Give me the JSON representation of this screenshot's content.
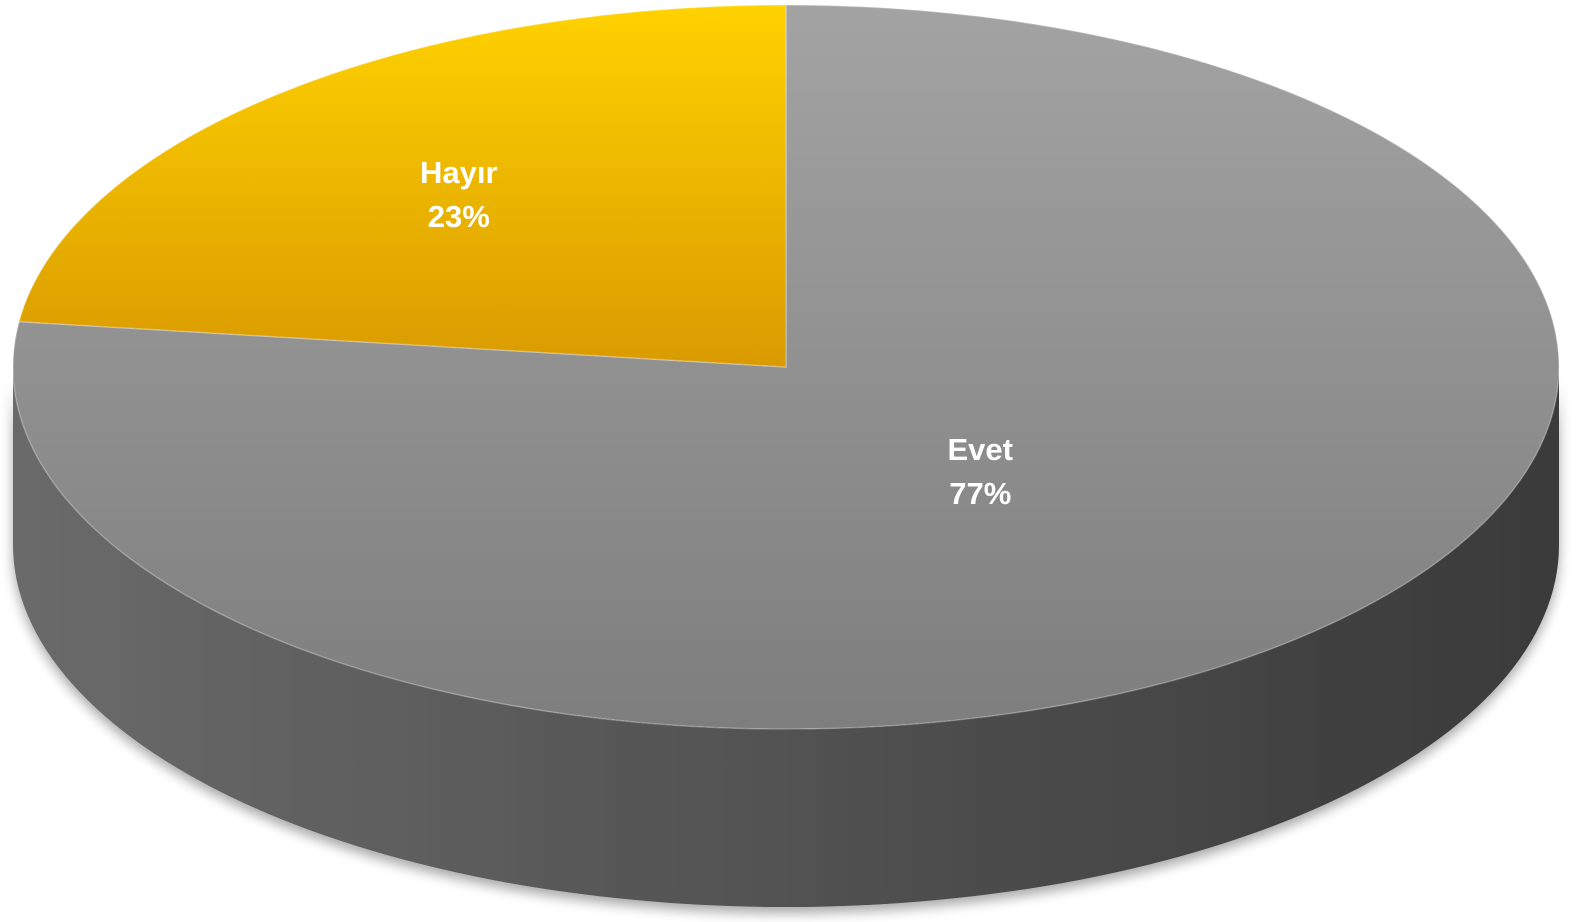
{
  "chart_data": {
    "type": "pie",
    "style": "3d",
    "slices": [
      {
        "label": "Evet",
        "value": 77,
        "percent_label": "77%",
        "color": "#8a8a8a"
      },
      {
        "label": "Hayır",
        "value": 23,
        "percent_label": "23%",
        "color": "#e8b200"
      }
    ],
    "colors": {
      "side_dark": "#3a3a3a",
      "side_light": "#6a6a6a",
      "gray_top": "#a3a3a3",
      "gray_bottom": "#7e7e7e",
      "gold_top": "#ffd200",
      "gold_bottom": "#d99a00"
    }
  }
}
